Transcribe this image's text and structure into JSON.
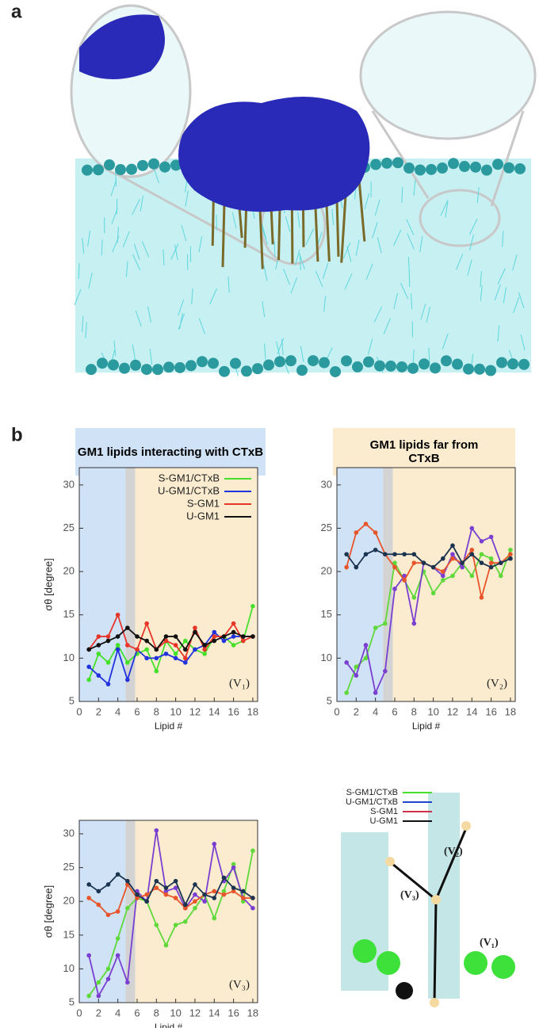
{
  "panel_labels": [
    "a",
    "b"
  ],
  "headers": [
    "GM1 lipids interacting with CTxB",
    "GM1 lipids far from CTxB"
  ],
  "chart_data": [
    {
      "type": "line",
      "xlabel": "Lipid #",
      "ylabel": "σθ [degree]",
      "annotation": "(V₁)",
      "legend": "top-right",
      "x": [
        1,
        2,
        3,
        4,
        5,
        6,
        7,
        8,
        9,
        10,
        11,
        12,
        13,
        14,
        15,
        16,
        17,
        18
      ],
      "xlim": [
        0,
        18.5
      ],
      "ylim": [
        5,
        32
      ],
      "xticks": [
        0,
        2,
        4,
        6,
        8,
        10,
        12,
        14,
        16,
        18
      ],
      "yticks": [
        5,
        10,
        15,
        20,
        25,
        30
      ],
      "regions": [
        {
          "from": 0,
          "to": 4.8,
          "color": "#cfe2f6"
        },
        {
          "from": 4.8,
          "to": 5.8,
          "color": "#d3d3d3"
        },
        {
          "from": 5.8,
          "to": 18.5,
          "color": "#fbecd0"
        }
      ],
      "series": [
        {
          "name": "S-GM1/CTxB",
          "color": "#44e02a",
          "values": [
            7.5,
            10.5,
            9.5,
            11.5,
            9.5,
            10.5,
            11,
            8.5,
            12,
            10.5,
            12,
            11,
            10.5,
            12.5,
            12.5,
            11.5,
            12,
            16
          ]
        },
        {
          "name": "U-GM1/CTxB",
          "color": "#2233dd",
          "values": [
            9,
            8,
            7,
            11,
            7.5,
            11,
            10,
            10,
            10.5,
            10,
            9.5,
            11,
            11.5,
            13,
            12,
            12.5,
            12.5,
            12.5
          ]
        },
        {
          "name": "S-GM1",
          "color": "#e8352a",
          "values": [
            11,
            12.5,
            12.5,
            15,
            11.5,
            11,
            14,
            11,
            12,
            11.5,
            10,
            13.5,
            11,
            12.5,
            12.5,
            14,
            12,
            12.5
          ]
        },
        {
          "name": "U-GM1",
          "color": "#111111",
          "values": [
            11,
            11.5,
            12,
            12.5,
            13.5,
            12.5,
            12,
            11,
            12.5,
            12.5,
            11,
            13,
            11.5,
            12,
            12.5,
            13,
            12.5,
            12.5
          ]
        }
      ]
    },
    {
      "type": "line",
      "xlabel": "Lipid #",
      "annotation": "(V₂)",
      "x": [
        1,
        2,
        3,
        4,
        5,
        6,
        7,
        8,
        9,
        10,
        11,
        12,
        13,
        14,
        15,
        16,
        17,
        18
      ],
      "xlim": [
        0,
        18.5
      ],
      "ylim": [
        5,
        32
      ],
      "xticks": [
        0,
        2,
        4,
        6,
        8,
        10,
        12,
        14,
        16,
        18
      ],
      "yticks": [
        5,
        10,
        15,
        20,
        25,
        30
      ],
      "regions": [
        {
          "from": 0,
          "to": 4.8,
          "color": "#cfe2f6"
        },
        {
          "from": 4.8,
          "to": 5.8,
          "color": "#d3d3d3"
        },
        {
          "from": 5.8,
          "to": 18.5,
          "color": "#fbecd0"
        }
      ],
      "series": [
        {
          "color": "#5fd83a",
          "values": [
            6,
            9,
            10,
            13.5,
            14,
            21,
            19,
            17,
            20,
            17.5,
            19,
            19.5,
            21,
            19.5,
            22,
            21.5,
            19.5,
            22.5
          ]
        },
        {
          "color": "#7a3fd0",
          "values": [
            9.5,
            8,
            11.5,
            6,
            8.5,
            18,
            19.5,
            14,
            21,
            20.5,
            19.5,
            22,
            20.5,
            25,
            23.5,
            24,
            21,
            21.5
          ]
        },
        {
          "color": "#e8552a",
          "values": [
            20.5,
            24.5,
            25.5,
            24.5,
            22,
            20.5,
            19,
            21,
            21,
            20.5,
            20,
            21.5,
            21,
            22.5,
            17,
            21,
            21,
            22
          ]
        },
        {
          "color": "#1b3550",
          "values": [
            22,
            20.5,
            22,
            22.5,
            22,
            22,
            22,
            22,
            21,
            20.5,
            21.5,
            23,
            21,
            22,
            21,
            20.5,
            21,
            21.5
          ]
        }
      ]
    },
    {
      "type": "line",
      "xlabel": "Lipid #",
      "ylabel": "σθ [degree]",
      "annotation": "(V₃)",
      "x": [
        1,
        2,
        3,
        4,
        5,
        6,
        7,
        8,
        9,
        10,
        11,
        12,
        13,
        14,
        15,
        16,
        17,
        18
      ],
      "xlim": [
        0,
        18.5
      ],
      "ylim": [
        5,
        32
      ],
      "xticks": [
        0,
        2,
        4,
        6,
        8,
        10,
        12,
        14,
        16,
        18
      ],
      "yticks": [
        5,
        10,
        15,
        20,
        25,
        30
      ],
      "regions": [
        {
          "from": 0,
          "to": 4.8,
          "color": "#cfe2f6"
        },
        {
          "from": 4.8,
          "to": 5.8,
          "color": "#d3d3d3"
        },
        {
          "from": 5.8,
          "to": 18.5,
          "color": "#fbecd0"
        }
      ],
      "series": [
        {
          "color": "#5fd83a",
          "values": [
            6,
            8,
            10,
            14.5,
            19,
            20.5,
            20,
            16.5,
            13.5,
            16.5,
            17,
            19,
            21,
            17.5,
            21.5,
            25.5,
            20,
            27.5
          ]
        },
        {
          "color": "#7a3fd0",
          "values": [
            12,
            6,
            8.5,
            12,
            8,
            21.5,
            20,
            30.5,
            21.5,
            22,
            19,
            21,
            20,
            28.5,
            23,
            25,
            20.5,
            19
          ]
        },
        {
          "color": "#e8552a",
          "values": [
            20.5,
            19.5,
            18,
            18.5,
            22.5,
            20.5,
            21,
            22,
            21,
            20.5,
            19,
            20,
            21,
            21.5,
            21,
            21.5,
            20.5,
            20.5
          ]
        },
        {
          "color": "#1b3550",
          "values": [
            22.5,
            21.5,
            22.5,
            24,
            23,
            21,
            20,
            23,
            22,
            23,
            19.5,
            22.5,
            21,
            20.5,
            23.5,
            22,
            21.5,
            20.5
          ]
        }
      ]
    }
  ],
  "diagram": {
    "legend": [
      {
        "name": "S-GM1/CTxB",
        "color": "#44e02a"
      },
      {
        "name": "U-GM1/CTxB",
        "color": "#2244cc"
      },
      {
        "name": "S-GM1",
        "color": "#d0304a"
      },
      {
        "name": "U-GM1",
        "color": "#111111"
      }
    ],
    "labels": [
      "(V₁)",
      "(V₂)",
      "(V₃)"
    ]
  }
}
